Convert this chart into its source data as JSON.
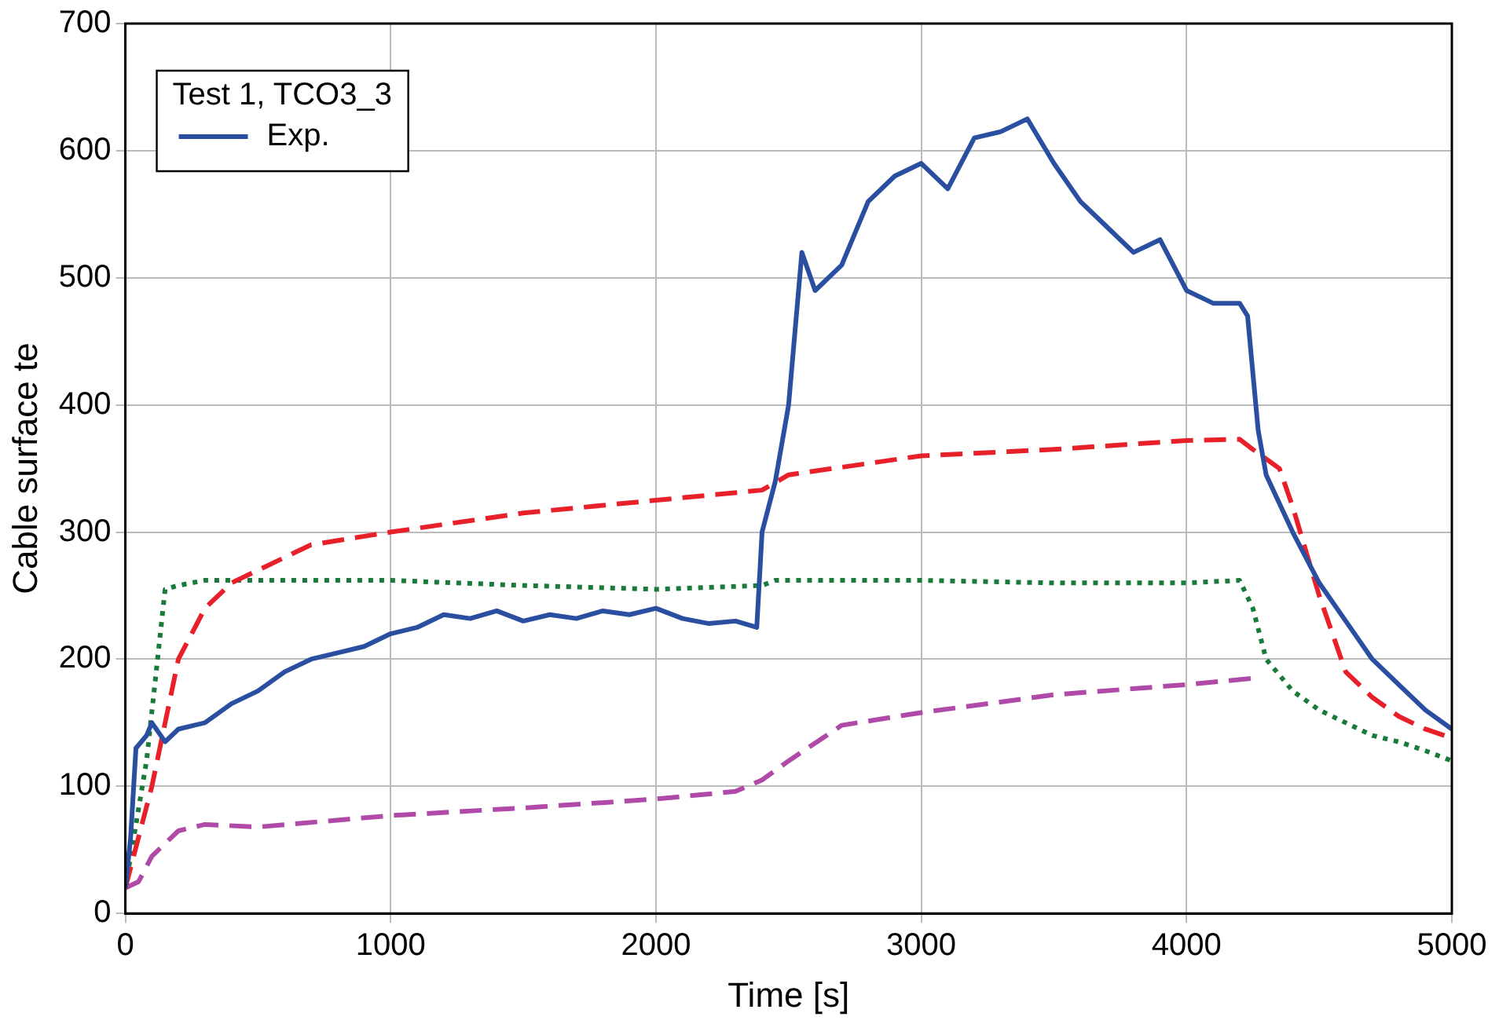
{
  "chart_data": {
    "type": "line",
    "xlabel": "Time [s]",
    "ylabel": "Cable surface te",
    "legend_title": "Test 1, TCO3_3",
    "legend": "top left",
    "grid": true,
    "marker": "none",
    "xlim": [
      0,
      5000
    ],
    "xticks": [
      0,
      1000,
      2000,
      3000,
      4000,
      5000
    ],
    "ylim": [
      0,
      700
    ],
    "yticks": [
      0,
      100,
      200,
      300,
      400,
      500,
      600,
      700
    ],
    "series": [
      {
        "name": "Exp.",
        "color": "#2a4fa0",
        "line_style": "solid",
        "x": [
          0,
          20,
          40,
          80,
          100,
          150,
          200,
          300,
          400,
          500,
          600,
          700,
          800,
          900,
          1000,
          1100,
          1200,
          1300,
          1400,
          1500,
          1600,
          1700,
          1800,
          1900,
          2000,
          2100,
          2200,
          2300,
          2380,
          2400,
          2450,
          2500,
          2550,
          2600,
          2700,
          2800,
          2900,
          3000,
          3100,
          3200,
          3300,
          3400,
          3500,
          3600,
          3700,
          3800,
          3900,
          4000,
          4100,
          4200,
          4230,
          4270,
          4300,
          4400,
          4500,
          4600,
          4700,
          4800,
          4900,
          5000
        ],
        "values": [
          20,
          60,
          130,
          140,
          150,
          135,
          145,
          150,
          165,
          175,
          190,
          200,
          205,
          210,
          220,
          225,
          235,
          232,
          238,
          230,
          235,
          232,
          238,
          235,
          240,
          232,
          228,
          230,
          225,
          300,
          340,
          400,
          520,
          490,
          510,
          560,
          580,
          590,
          570,
          610,
          615,
          625,
          590,
          560,
          540,
          520,
          530,
          490,
          480,
          480,
          470,
          380,
          345,
          300,
          260,
          230,
          200,
          180,
          160,
          145
        ]
      },
      {
        "color": "#e8202a",
        "line_style": "dashed",
        "x": [
          0,
          100,
          200,
          300,
          400,
          500,
          700,
          1000,
          1500,
          2000,
          2400,
          2500,
          3000,
          3500,
          4000,
          4200,
          4250,
          4350,
          4400,
          4500,
          4600,
          4700,
          4800,
          4900,
          5000
        ],
        "values": [
          20,
          100,
          200,
          240,
          260,
          270,
          290,
          300,
          315,
          325,
          333,
          345,
          360,
          365,
          372,
          373,
          365,
          350,
          320,
          250,
          190,
          170,
          155,
          145,
          138
        ]
      },
      {
        "color": "#1a7a3a",
        "line_style": "dotted",
        "x": [
          0,
          80,
          150,
          200,
          300,
          1000,
          1500,
          2000,
          2400,
          2450,
          3000,
          3500,
          4000,
          4200,
          4250,
          4300,
          4400,
          4500,
          4600,
          4700,
          4800,
          4900,
          5000
        ],
        "values": [
          20,
          120,
          255,
          258,
          262,
          262,
          258,
          255,
          258,
          262,
          262,
          260,
          260,
          262,
          240,
          200,
          175,
          160,
          150,
          140,
          135,
          128,
          120
        ]
      },
      {
        "color": "#b04aa8",
        "line_style": "dashed",
        "x": [
          0,
          50,
          100,
          200,
          300,
          500,
          1000,
          1500,
          2000,
          2300,
          2400,
          2500,
          2700,
          3000,
          3500,
          4000,
          4250
        ],
        "values": [
          20,
          25,
          45,
          65,
          70,
          68,
          77,
          83,
          90,
          96,
          105,
          120,
          148,
          158,
          172,
          180,
          185
        ]
      }
    ]
  }
}
